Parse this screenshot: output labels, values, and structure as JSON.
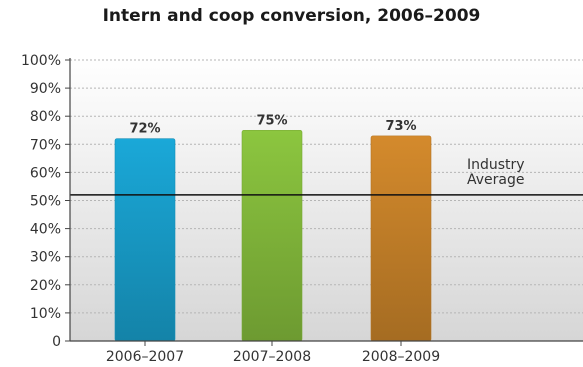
{
  "chart_data": {
    "type": "bar",
    "title": "Intern and coop conversion, 2006–2009",
    "categories": [
      "2006–2007",
      "2007–2008",
      "2008–2009"
    ],
    "values": [
      72,
      75,
      73
    ],
    "data_labels": [
      "72%",
      "75%",
      "73%"
    ],
    "colors": [
      "#1aa8d8",
      "#8cc63f",
      "#d48a2c"
    ],
    "ylim": [
      0,
      100
    ],
    "yticks": [
      0,
      10,
      20,
      30,
      40,
      50,
      60,
      70,
      80,
      90,
      100
    ],
    "ytick_labels": [
      "0",
      "10%",
      "20%",
      "30%",
      "40%",
      "50%",
      "60%",
      "70%",
      "80%",
      "90%",
      "100%"
    ],
    "grid": true,
    "reference_line": {
      "value": 52,
      "label_lines": [
        "Industry",
        "Average"
      ]
    },
    "xlabel": "",
    "ylabel": ""
  }
}
